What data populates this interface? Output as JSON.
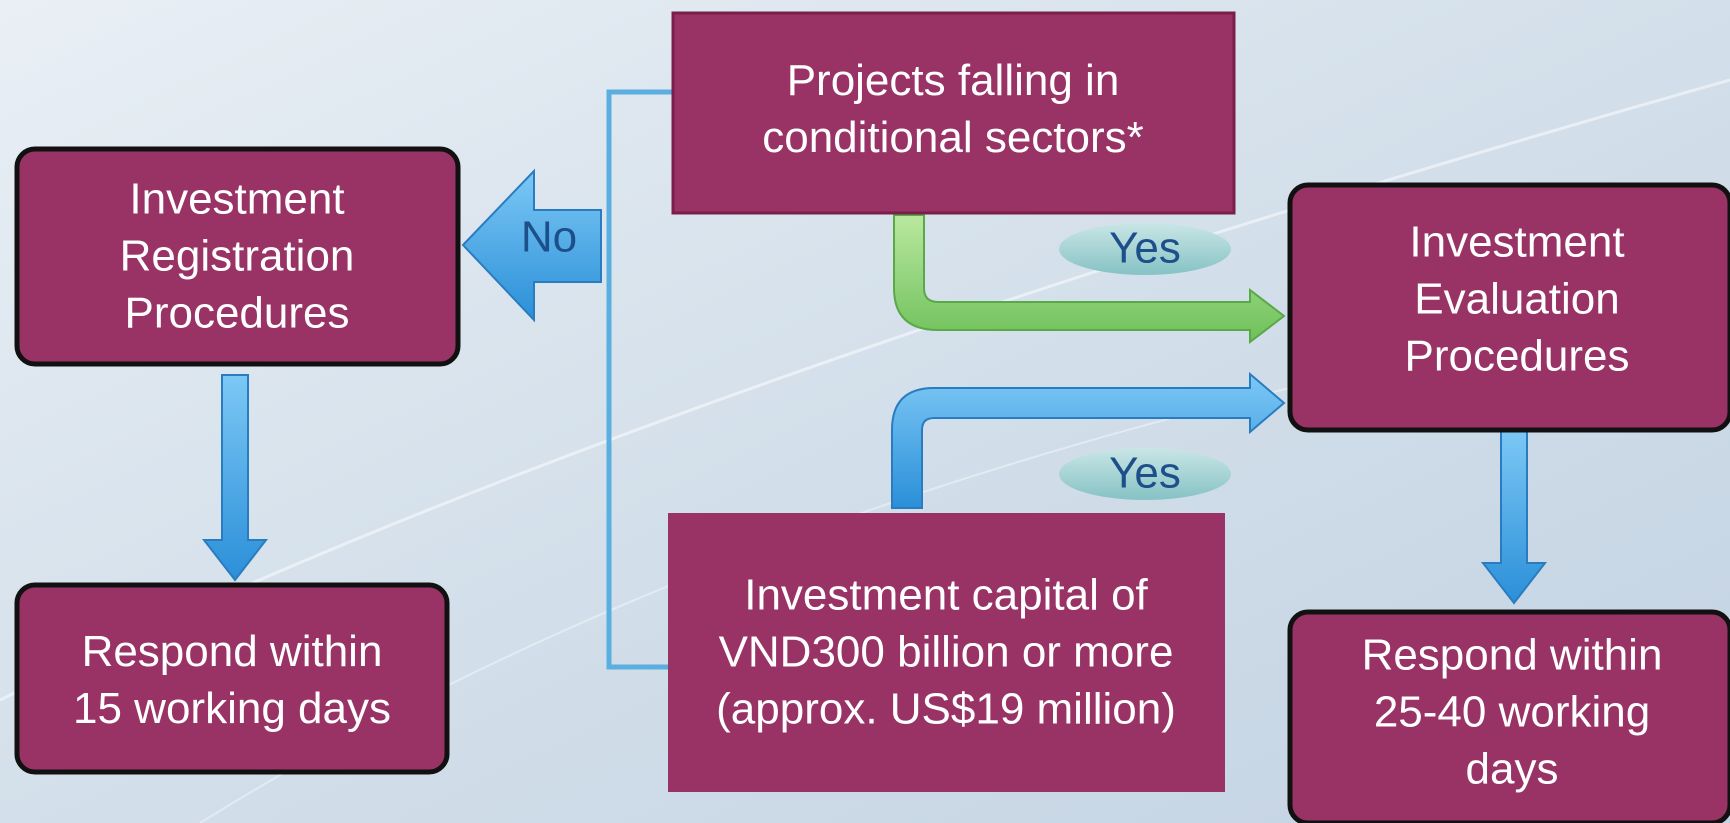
{
  "nodes": [
    {
      "lines": [
        "Investment",
        "Registration",
        "Procedures"
      ]
    },
    {
      "lines": [
        "Respond within",
        "15 working days"
      ]
    },
    {
      "lines": [
        "Projects falling in",
        "conditional sectors*"
      ]
    },
    {
      "lines": [
        "Investment capital of",
        "VND300 billion or more",
        "(approx. US$19 million)"
      ]
    },
    {
      "lines": [
        "Investment",
        "Evaluation",
        "Procedures"
      ]
    },
    {
      "lines": [
        "Respond within",
        "25-40 working",
        "days"
      ]
    }
  ],
  "edges": [
    {
      "label": "No"
    },
    {
      "label": "Yes"
    },
    {
      "label": "Yes"
    }
  ]
}
